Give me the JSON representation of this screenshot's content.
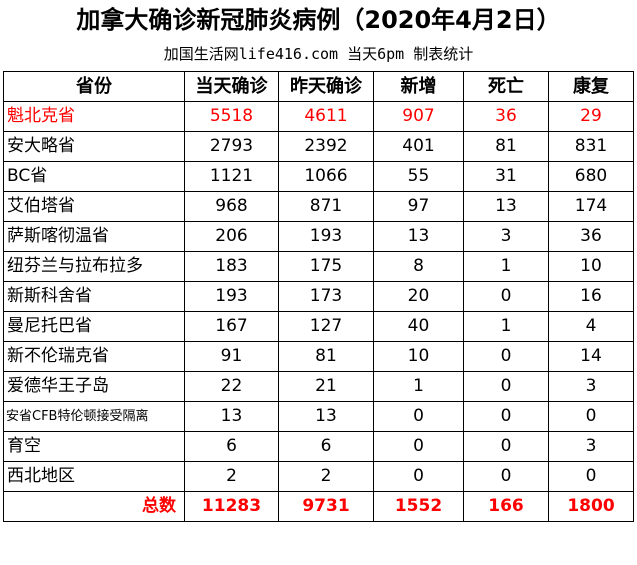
{
  "title": "加拿大确诊新冠肺炎病例（2020年4月2日）",
  "subtitle": "加国生活网life416.com 当天6pm 制表统计",
  "headers": [
    "省份",
    "当天确诊",
    "昨天确诊",
    "新增",
    "死亡",
    "康复"
  ],
  "rows": [
    {
      "province": "魁北克省",
      "today": "5518",
      "yesterday": "4611",
      "new": "907",
      "deaths": "36",
      "recovered": "29"
    },
    {
      "province": "安大略省",
      "today": "2793",
      "yesterday": "2392",
      "new": "401",
      "deaths": "81",
      "recovered": "831"
    },
    {
      "province": "BC省",
      "today": "1121",
      "yesterday": "1066",
      "new": "55",
      "deaths": "31",
      "recovered": "680"
    },
    {
      "province": "艾伯塔省",
      "today": "968",
      "yesterday": "871",
      "new": "97",
      "deaths": "13",
      "recovered": "174"
    },
    {
      "province": "萨斯喀彻温省",
      "today": "206",
      "yesterday": "193",
      "new": "13",
      "deaths": "3",
      "recovered": "36"
    },
    {
      "province": "纽芬兰与拉布拉多",
      "today": "183",
      "yesterday": "175",
      "new": "8",
      "deaths": "1",
      "recovered": "10"
    },
    {
      "province": "新斯科舍省",
      "today": "193",
      "yesterday": "173",
      "new": "20",
      "deaths": "0",
      "recovered": "16"
    },
    {
      "province": "曼尼托巴省",
      "today": "167",
      "yesterday": "127",
      "new": "40",
      "deaths": "1",
      "recovered": "4"
    },
    {
      "province": "新不伦瑞克省",
      "today": "91",
      "yesterday": "81",
      "new": "10",
      "deaths": "0",
      "recovered": "14"
    },
    {
      "province": "爱德华王子岛",
      "today": "22",
      "yesterday": "21",
      "new": "1",
      "deaths": "0",
      "recovered": "3"
    },
    {
      "province": "安省CFB特伦顿接受隔离",
      "today": "13",
      "yesterday": "13",
      "new": "0",
      "deaths": "0",
      "recovered": "0"
    },
    {
      "province": "育空",
      "today": "6",
      "yesterday": "6",
      "new": "0",
      "deaths": "0",
      "recovered": "3"
    },
    {
      "province": "西北地区",
      "today": "2",
      "yesterday": "2",
      "new": "0",
      "deaths": "0",
      "recovered": "0"
    }
  ],
  "total": {
    "label": "总数",
    "today": "11283",
    "yesterday": "9731",
    "new": "1552",
    "deaths": "166",
    "recovered": "1800"
  },
  "colors": {
    "highlight": "#ff0000",
    "border": "#000000"
  }
}
